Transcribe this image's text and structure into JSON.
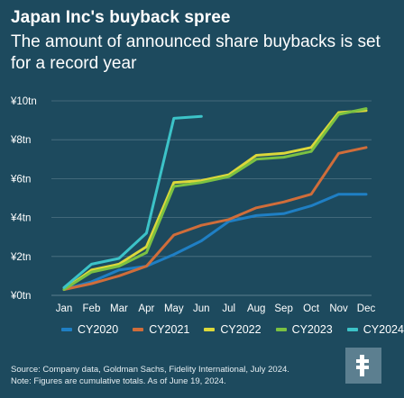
{
  "header": {
    "title": "Japan Inc's buyback spree",
    "subtitle": "The amount of announced share buybacks is set for a record year"
  },
  "footer": {
    "source": "Source: Company data, Goldman Sachs, Fidelity International, July 2024.",
    "note": "Note: Figures are cumulative totals. As of June 19, 2024."
  },
  "logo": {
    "icon": "fidelity-logo-icon",
    "background": "#5c7f90"
  },
  "colors": {
    "background": "#1d4a5e",
    "text": "#ffffff",
    "grid": "#4f7384"
  },
  "chart_data": {
    "type": "line",
    "title": "",
    "xlabel": "",
    "ylabel": "",
    "categories": [
      "Jan",
      "Feb",
      "Mar",
      "Apr",
      "May",
      "Jun",
      "Jul",
      "Aug",
      "Sep",
      "Oct",
      "Nov",
      "Dec"
    ],
    "ylim": [
      0,
      10
    ],
    "yticks": [
      0,
      2,
      4,
      6,
      8,
      10
    ],
    "ytick_labels": [
      "¥0tn",
      "¥2tn",
      "¥4tn",
      "¥6tn",
      "¥8tn",
      "¥10tn"
    ],
    "grid": true,
    "legend_position": "bottom",
    "series": [
      {
        "name": "CY2020",
        "color": "#1f7fc4",
        "values": [
          0.3,
          0.7,
          1.3,
          1.5,
          2.1,
          2.8,
          3.8,
          4.1,
          4.2,
          4.6,
          5.2,
          5.2
        ]
      },
      {
        "name": "CY2021",
        "color": "#d06d3a",
        "values": [
          0.3,
          0.6,
          1.0,
          1.5,
          3.1,
          3.6,
          3.9,
          4.5,
          4.8,
          5.2,
          7.3,
          7.6
        ]
      },
      {
        "name": "CY2022",
        "color": "#dcd83a",
        "values": [
          0.3,
          1.3,
          1.6,
          2.5,
          5.8,
          5.9,
          6.2,
          7.2,
          7.3,
          7.6,
          9.4,
          9.5
        ]
      },
      {
        "name": "CY2023",
        "color": "#7bc142",
        "values": [
          0.3,
          1.2,
          1.5,
          2.2,
          5.6,
          5.8,
          6.1,
          7.0,
          7.1,
          7.4,
          9.3,
          9.6
        ]
      },
      {
        "name": "CY2024",
        "color": "#3cc3c8",
        "values": [
          0.4,
          1.6,
          1.9,
          3.2,
          9.1,
          9.2,
          null,
          null,
          null,
          null,
          null,
          null
        ]
      }
    ]
  }
}
